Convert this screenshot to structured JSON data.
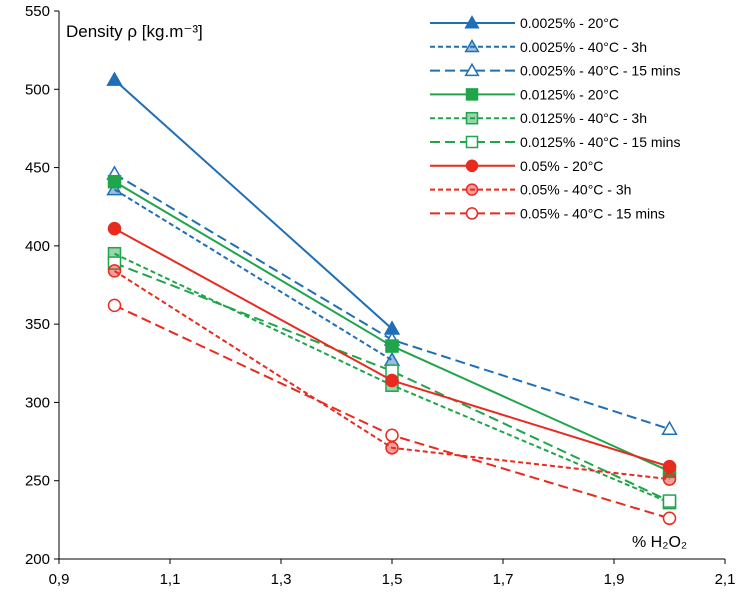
{
  "chart_data": {
    "type": "line",
    "ylabel": "Density ρ [kg.m⁻³]",
    "xlabel": "% H₂O₂",
    "xlim": [
      0.9,
      2.1
    ],
    "ylim": [
      200,
      550
    ],
    "x_ticks": [
      "0,9",
      "1,1",
      "1,3",
      "1,5",
      "1,7",
      "1,9",
      "2,1"
    ],
    "y_ticks": [
      "200",
      "250",
      "300",
      "350",
      "400",
      "450",
      "500",
      "550"
    ],
    "grid": false,
    "legend_position": "top-right",
    "x": [
      1.0,
      1.5,
      2.0
    ],
    "series": [
      {
        "name": "0.0025% - 20°C",
        "values": [
          506,
          347,
          null
        ],
        "color": "#1f6fb7",
        "dash": "solid",
        "marker": "triangle",
        "fill": "filled"
      },
      {
        "name": "0.0025% - 40°C - 3h",
        "values": [
          436,
          327,
          null
        ],
        "color": "#1f6fb7",
        "dash": "short",
        "marker": "triangle",
        "fill": "light"
      },
      {
        "name": "0.0025% - 40°C - 15 mins",
        "values": [
          446,
          340,
          283
        ],
        "color": "#1f6fb7",
        "dash": "long",
        "marker": "triangle",
        "fill": "open"
      },
      {
        "name": "0.0125% - 20°C",
        "values": [
          441,
          336,
          256
        ],
        "color": "#1fa54a",
        "dash": "solid",
        "marker": "square",
        "fill": "filled"
      },
      {
        "name": "0.0125% - 40°C - 3h",
        "values": [
          395,
          311,
          236
        ],
        "color": "#1fa54a",
        "dash": "short",
        "marker": "square",
        "fill": "light"
      },
      {
        "name": "0.0125% - 40°C - 15 mins",
        "values": [
          389,
          320,
          237
        ],
        "color": "#1fa54a",
        "dash": "long",
        "marker": "square",
        "fill": "open"
      },
      {
        "name": "0.05% - 20°C",
        "values": [
          411,
          314,
          259
        ],
        "color": "#e82a1f",
        "dash": "solid",
        "marker": "circle",
        "fill": "filled"
      },
      {
        "name": "0.05% - 40°C - 3h",
        "values": [
          384,
          271,
          251
        ],
        "color": "#e82a1f",
        "dash": "short",
        "marker": "circle",
        "fill": "light"
      },
      {
        "name": "0.05% - 40°C - 15 mins",
        "values": [
          362,
          279,
          226
        ],
        "color": "#e82a1f",
        "dash": "long",
        "marker": "circle",
        "fill": "open"
      }
    ]
  }
}
